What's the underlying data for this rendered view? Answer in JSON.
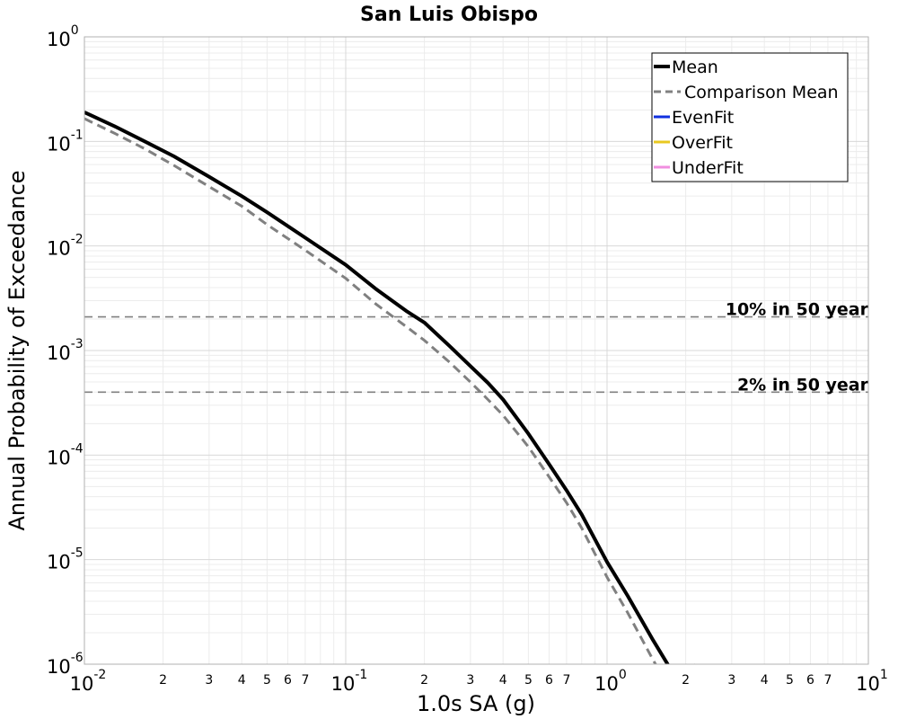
{
  "chart_data": {
    "type": "line",
    "title": "San Luis Obispo",
    "xlabel": "1.0s SA (g)",
    "ylabel": "Annual Probability of Exceedance",
    "x_scale": "log",
    "y_scale": "log",
    "xlim": [
      0.01,
      10
    ],
    "ylim": [
      1e-06,
      1
    ],
    "grid": true,
    "legend_position": "top-right",
    "x_major_ticks": [
      {
        "base": "10",
        "exp": "-2",
        "value": 0.01
      },
      {
        "base": "10",
        "exp": "-1",
        "value": 0.1
      },
      {
        "base": "10",
        "exp": "0",
        "value": 1
      },
      {
        "base": "10",
        "exp": "1",
        "value": 10
      }
    ],
    "x_minor_tick_labels": [
      "2",
      "3",
      "4",
      "5",
      "6",
      "7"
    ],
    "y_major_ticks": [
      {
        "base": "10",
        "exp": "0",
        "value": 1
      },
      {
        "base": "10",
        "exp": "-1",
        "value": 0.1
      },
      {
        "base": "10",
        "exp": "-2",
        "value": 0.01
      },
      {
        "base": "10",
        "exp": "-3",
        "value": 0.001
      },
      {
        "base": "10",
        "exp": "-4",
        "value": 0.0001
      },
      {
        "base": "10",
        "exp": "-5",
        "value": 1e-05
      },
      {
        "base": "10",
        "exp": "-6",
        "value": 1e-06
      }
    ],
    "series": [
      {
        "name": "Mean",
        "color": "#000000",
        "dash": "solid",
        "x": [
          0.01,
          0.013,
          0.017,
          0.022,
          0.03,
          0.04,
          0.05,
          0.07,
          0.1,
          0.13,
          0.17,
          0.2,
          0.25,
          0.3,
          0.35,
          0.4,
          0.5,
          0.6,
          0.7,
          0.8,
          1.0,
          1.2,
          1.5,
          1.8,
          2.0,
          2.2
        ],
        "y": [
          0.19,
          0.14,
          0.1,
          0.072,
          0.046,
          0.03,
          0.021,
          0.012,
          0.0066,
          0.0039,
          0.0024,
          0.00185,
          0.0011,
          0.00071,
          0.00049,
          0.00034,
          0.00016,
          8.2e-05,
          4.6e-05,
          2.7e-05,
          9.5e-06,
          4.5e-06,
          1.7e-06,
          8e-07,
          5e-07,
          1e-06
        ]
      },
      {
        "name": "Comparison Mean",
        "color": "#808080",
        "dash": "dashed",
        "x": [
          0.01,
          0.013,
          0.017,
          0.022,
          0.03,
          0.04,
          0.05,
          0.07,
          0.1,
          0.13,
          0.17,
          0.2,
          0.25,
          0.3,
          0.35,
          0.4,
          0.5,
          0.6,
          0.7,
          0.8,
          1.0,
          1.2,
          1.5,
          1.8,
          2.0
        ],
        "y": [
          0.165,
          0.12,
          0.085,
          0.059,
          0.037,
          0.024,
          0.016,
          0.0091,
          0.0049,
          0.0028,
          0.0017,
          0.00125,
          0.00077,
          0.0005,
          0.00034,
          0.00024,
          0.00012,
          6.2e-05,
          3.5e-05,
          2e-05,
          6.8e-06,
          3.1e-06,
          1.1e-06,
          5e-07,
          1e-06
        ]
      },
      {
        "name": "EvenFit",
        "color": "#1030e0",
        "dash": "solid",
        "x": [],
        "y": []
      },
      {
        "name": "OverFit",
        "color": "#e8c820",
        "dash": "solid",
        "x": [],
        "y": []
      },
      {
        "name": "UnderFit",
        "color": "#f08ee0",
        "dash": "solid",
        "x": [],
        "y": []
      }
    ],
    "reference_lines": [
      {
        "label": "10% in 50 year",
        "y": 0.0021,
        "color": "#808080"
      },
      {
        "label": "2% in 50 year",
        "y": 0.0004,
        "color": "#808080"
      }
    ]
  }
}
